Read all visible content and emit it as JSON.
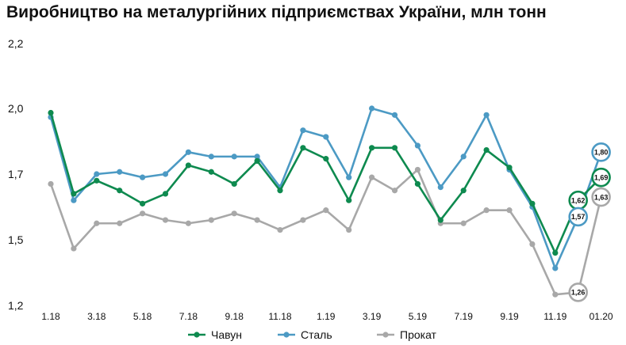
{
  "chart_data": {
    "type": "line",
    "title": "Виробництво на металургійних підприємствах України, млн тонн",
    "x": [
      "1.18",
      "2.18",
      "3.18",
      "4.18",
      "5.18",
      "6.18",
      "7.18",
      "8.18",
      "9.18",
      "10.18",
      "11.18",
      "12.18",
      "1.19",
      "2.19",
      "3.19",
      "4.19",
      "5.19",
      "6.19",
      "7.19",
      "8.19",
      "9.19",
      "10.19",
      "11.19",
      "12.19",
      "01.20"
    ],
    "x_tick_labels": [
      "1.18",
      "3.18",
      "5.18",
      "7.18",
      "9.18",
      "11.18",
      "1.19",
      "3.19",
      "5.19",
      "7.19",
      "9.19",
      "11.19",
      "01.20"
    ],
    "y_ticks": [
      "1,2",
      "1,5",
      "1,7",
      "2,0",
      "2,2"
    ],
    "ylim": [
      1.2,
      2.2
    ],
    "series": [
      {
        "name": "Чавун",
        "color": "#0e8a4f",
        "values": [
          1.98,
          1.64,
          1.68,
          1.65,
          1.61,
          1.64,
          1.74,
          1.71,
          1.67,
          1.76,
          1.65,
          1.82,
          1.77,
          1.62,
          1.82,
          1.82,
          1.67,
          1.56,
          1.65,
          1.81,
          1.73,
          1.61,
          1.44,
          1.62,
          1.69
        ]
      },
      {
        "name": "Сталь",
        "color": "#4c9ac4",
        "values": [
          1.96,
          1.62,
          1.7,
          1.71,
          1.69,
          1.7,
          1.8,
          1.78,
          1.78,
          1.78,
          1.66,
          1.9,
          1.87,
          1.69,
          2.0,
          1.97,
          1.83,
          1.66,
          1.78,
          1.97,
          1.72,
          1.6,
          1.37,
          1.57,
          1.8
        ]
      },
      {
        "name": "Прокат",
        "color": "#a8a8a8",
        "values": [
          1.67,
          1.46,
          1.55,
          1.55,
          1.58,
          1.56,
          1.55,
          1.56,
          1.58,
          1.56,
          1.53,
          1.56,
          1.59,
          1.53,
          1.69,
          1.65,
          1.72,
          1.55,
          1.55,
          1.59,
          1.59,
          1.48,
          1.25,
          1.26,
          1.63
        ]
      }
    ],
    "annotations": [
      {
        "series": "Чавун",
        "index": 23,
        "text": "1,62"
      },
      {
        "series": "Чавун",
        "index": 24,
        "text": "1,69"
      },
      {
        "series": "Сталь",
        "index": 23,
        "text": "1,57"
      },
      {
        "series": "Сталь",
        "index": 24,
        "text": "1,80"
      },
      {
        "series": "Прокат",
        "index": 23,
        "text": "1,26"
      },
      {
        "series": "Прокат",
        "index": 24,
        "text": "1,63"
      }
    ],
    "legend": {
      "position": "bottom-center",
      "items": [
        "Чавун",
        "Сталь",
        "Прокат"
      ]
    },
    "grid": false
  }
}
